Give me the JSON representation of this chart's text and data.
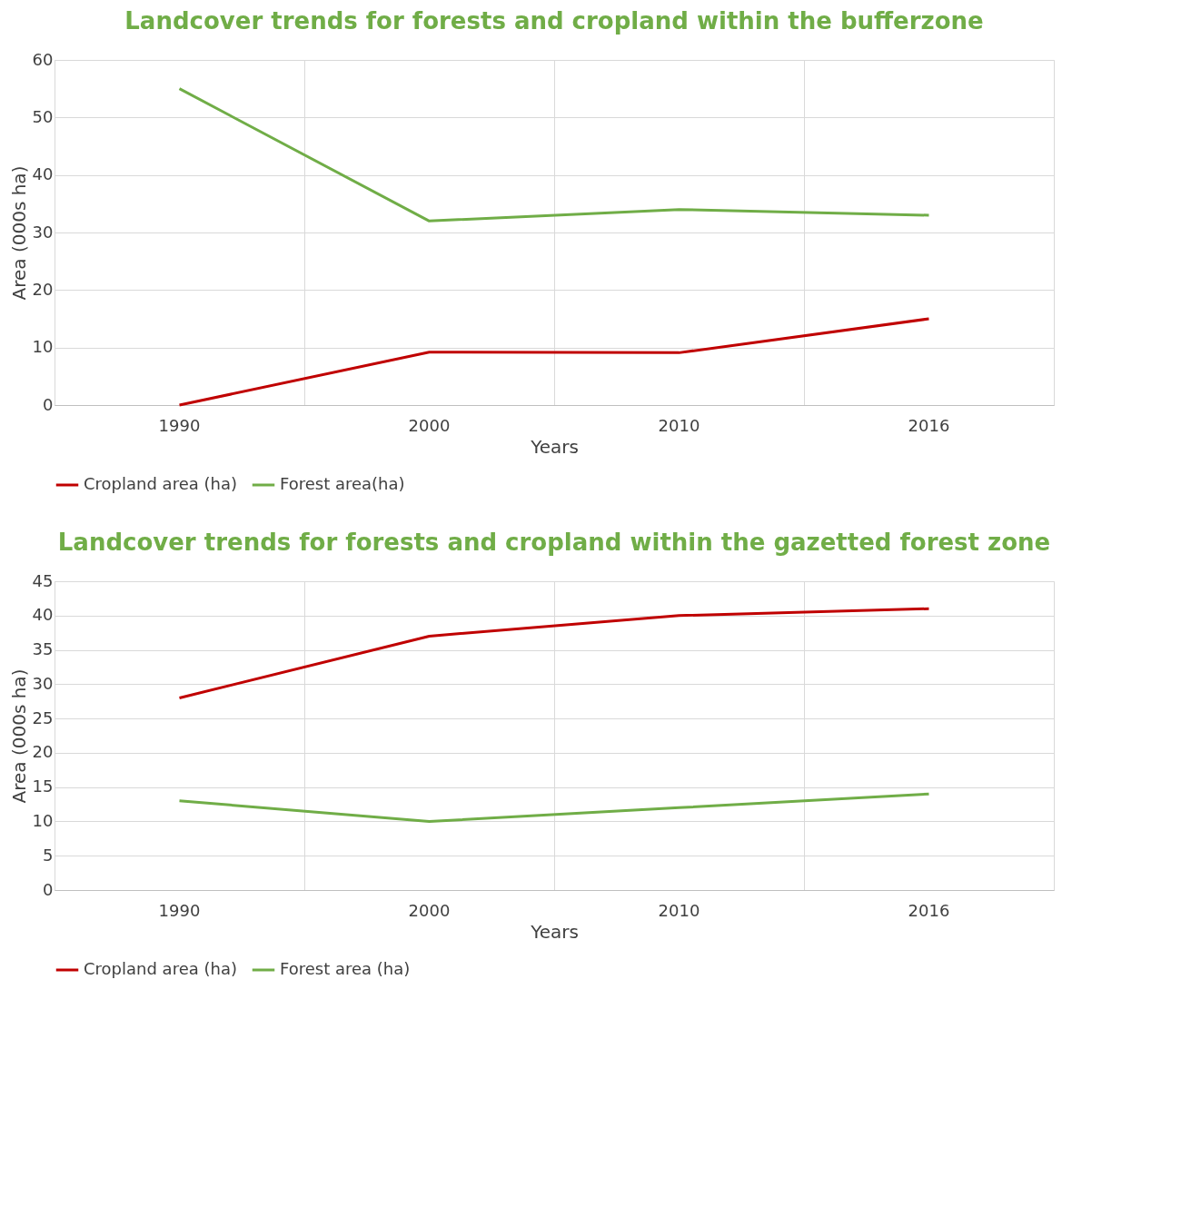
{
  "chart_data": [
    {
      "type": "line",
      "title": "Landcover trends for forests and cropland within the bufferzone",
      "xlabel": "Years",
      "ylabel": "Area (000s ha)",
      "categories": [
        "1990",
        "2000",
        "2010",
        "2016"
      ],
      "ylim": [
        0,
        60
      ],
      "yticks": [
        0,
        10,
        20,
        30,
        40,
        50,
        60
      ],
      "grid": true,
      "legend": "bottom",
      "marker": "none",
      "line_style": "solid",
      "series": [
        {
          "name": "Cropland area (ha)",
          "color": "#c00000",
          "values": [
            0,
            9.2,
            9.1,
            15
          ]
        },
        {
          "name": "Forest area(ha)",
          "color": "#70ad47",
          "values": [
            55,
            32,
            34,
            33
          ]
        }
      ]
    },
    {
      "type": "line",
      "title": "Landcover trends for forests and cropland within the gazetted forest zone",
      "xlabel": "Years",
      "ylabel": "Area (000s ha)",
      "categories": [
        "1990",
        "2000",
        "2010",
        "2016"
      ],
      "ylim": [
        0,
        45
      ],
      "yticks": [
        0,
        5,
        10,
        15,
        20,
        25,
        30,
        35,
        40,
        45
      ],
      "grid": true,
      "legend": "bottom",
      "marker": "none",
      "line_style": "solid",
      "series": [
        {
          "name": "Cropland area (ha)",
          "color": "#c00000",
          "values": [
            28,
            37,
            40,
            41
          ]
        },
        {
          "name": "Forest area (ha)",
          "color": "#70ad47",
          "values": [
            13,
            10,
            12,
            14
          ]
        }
      ]
    }
  ]
}
